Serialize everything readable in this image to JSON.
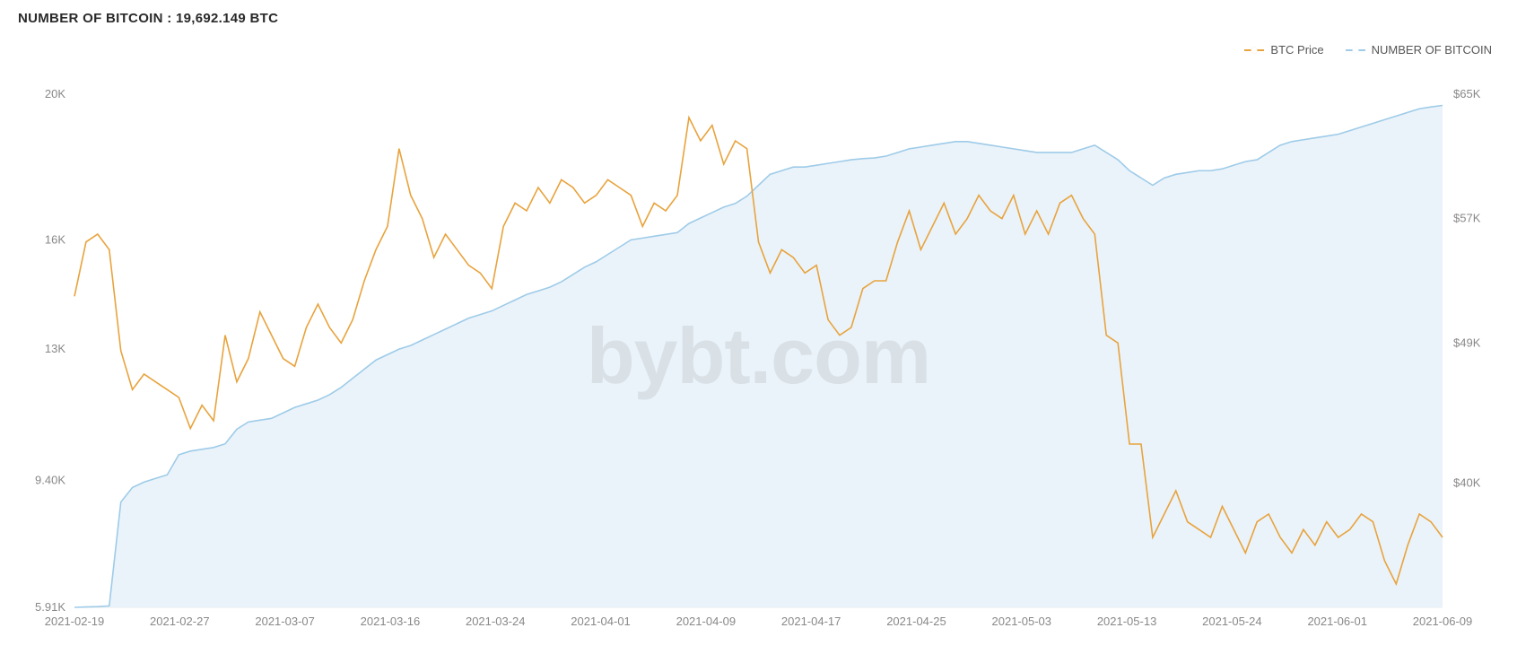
{
  "title_prefix": "NUMBER OF BITCOIN : ",
  "title_value": "19,692.149 BTC",
  "watermark": "bybt.com",
  "legend": {
    "series_a": {
      "label": "BTC Price",
      "color": "#e8a33d"
    },
    "series_b": {
      "label": "NUMBER OF BITCOIN",
      "color": "#9ecbe8"
    }
  },
  "chart": {
    "type": "dual-axis-line-area",
    "background_color": "#ffffff",
    "area_fill": "#eaf3fa",
    "axis_text_color": "#888888",
    "axis_fontsize": 13,
    "grid_color": "#e8e8e8",
    "line_width_price": 1.6,
    "line_width_btc": 1.6,
    "left_axis": {
      "ticks": [
        {
          "v": 5910,
          "label": "5.91K"
        },
        {
          "v": 9400,
          "label": "9.40K"
        },
        {
          "v": 13000,
          "label": "13K"
        },
        {
          "v": 16000,
          "label": "16K"
        },
        {
          "v": 20000,
          "label": "20K"
        }
      ],
      "min": 5910,
      "max": 20000
    },
    "right_axis": {
      "ticks": [
        {
          "v": 40000,
          "label": "$40K"
        },
        {
          "v": 49000,
          "label": "$49K"
        },
        {
          "v": 57000,
          "label": "$57K"
        },
        {
          "v": 65000,
          "label": "$65K"
        }
      ],
      "min": 32000,
      "max": 65000
    },
    "x_axis": {
      "labels": [
        "2021-02-19",
        "2021-02-27",
        "2021-03-07",
        "2021-03-16",
        "2021-03-24",
        "2021-04-01",
        "2021-04-09",
        "2021-04-17",
        "2021-04-25",
        "2021-05-03",
        "2021-05-13",
        "2021-05-24",
        "2021-06-01",
        "2021-06-09"
      ]
    },
    "series_btc_number": [
      5910,
      5920,
      5930,
      5950,
      8800,
      9200,
      9350,
      9450,
      9550,
      10100,
      10200,
      10250,
      10300,
      10400,
      10800,
      11000,
      11050,
      11100,
      11250,
      11400,
      11500,
      11600,
      11750,
      11950,
      12200,
      12450,
      12700,
      12850,
      13000,
      13100,
      13250,
      13400,
      13550,
      13700,
      13850,
      13950,
      14050,
      14200,
      14350,
      14500,
      14600,
      14700,
      14850,
      15050,
      15250,
      15400,
      15600,
      15800,
      16000,
      16050,
      16100,
      16150,
      16200,
      16450,
      16600,
      16750,
      16900,
      17000,
      17200,
      17500,
      17800,
      17900,
      18000,
      18000,
      18050,
      18100,
      18150,
      18200,
      18230,
      18250,
      18300,
      18400,
      18500,
      18550,
      18600,
      18650,
      18700,
      18700,
      18650,
      18600,
      18550,
      18500,
      18450,
      18400,
      18400,
      18400,
      18400,
      18500,
      18600,
      18400,
      18200,
      17900,
      17700,
      17500,
      17700,
      17800,
      17850,
      17900,
      17900,
      17950,
      18050,
      18150,
      18200,
      18400,
      18600,
      18700,
      18750,
      18800,
      18850,
      18900,
      19000,
      19100,
      19200,
      19300,
      19400,
      19500,
      19600,
      19650,
      19692
    ],
    "series_btc_price": [
      52000,
      55500,
      56000,
      55000,
      48500,
      46000,
      47000,
      46500,
      46000,
      45500,
      43500,
      45000,
      44000,
      49500,
      46500,
      48000,
      51000,
      49500,
      48000,
      47500,
      50000,
      51500,
      50000,
      49000,
      50500,
      53000,
      55000,
      56500,
      61500,
      58500,
      57000,
      54500,
      56000,
      55000,
      54000,
      53500,
      52500,
      56500,
      58000,
      57500,
      59000,
      58000,
      59500,
      59000,
      58000,
      58500,
      59500,
      59000,
      58500,
      56500,
      58000,
      57500,
      58500,
      63500,
      62000,
      63000,
      60500,
      62000,
      61500,
      55500,
      53500,
      55000,
      54500,
      53500,
      54000,
      50500,
      49500,
      50000,
      52500,
      53000,
      53000,
      55500,
      57500,
      55000,
      56500,
      58000,
      56000,
      57000,
      58500,
      57500,
      57000,
      58500,
      56000,
      57500,
      56000,
      58000,
      58500,
      57000,
      56000,
      49500,
      49000,
      42500,
      42500,
      36500,
      38000,
      39500,
      37500,
      37000,
      36500,
      38500,
      37000,
      35500,
      37500,
      38000,
      36500,
      35500,
      37000,
      36000,
      37500,
      36500,
      37000,
      38000,
      37500,
      35000,
      33500,
      36000,
      38000,
      37500,
      36500
    ]
  }
}
